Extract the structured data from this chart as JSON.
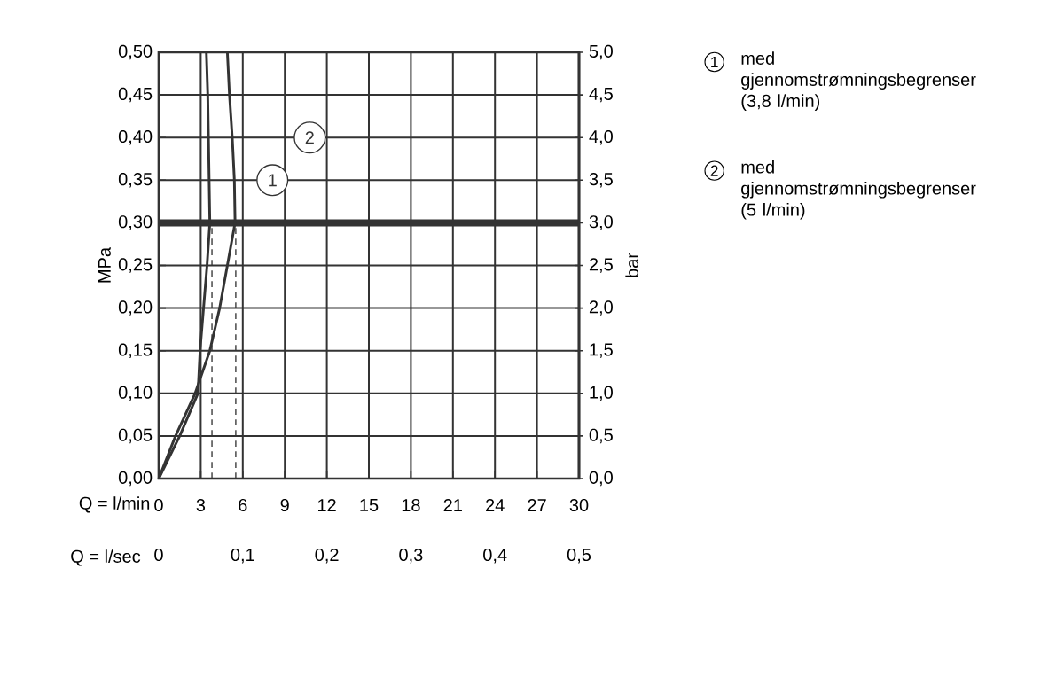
{
  "chart_data": {
    "type": "line",
    "xlabel": "Q = l/min",
    "ylabel": "MPa",
    "y2label": "bar",
    "x2label": "Q = l/sec",
    "xlim": [
      0,
      30
    ],
    "xticks": [
      0,
      3,
      6,
      9,
      12,
      15,
      18,
      21,
      24,
      27,
      30
    ],
    "ylim": [
      0,
      0.5
    ],
    "yticks": [
      {
        "value": 0,
        "label": "0,00"
      },
      {
        "value": 0.05,
        "label": "0,05"
      },
      {
        "value": 0.1,
        "label": "0,10"
      },
      {
        "value": 0.15,
        "label": "0,15"
      },
      {
        "value": 0.2,
        "label": "0,20"
      },
      {
        "value": 0.25,
        "label": "0,25"
      },
      {
        "value": 0.3,
        "label": "0,30"
      },
      {
        "value": 0.35,
        "label": "0,35"
      },
      {
        "value": 0.4,
        "label": "0,40"
      },
      {
        "value": 0.45,
        "label": "0,45"
      },
      {
        "value": 0.5,
        "label": "0,50"
      }
    ],
    "y2lim": [
      0,
      5
    ],
    "y2ticks": [
      {
        "value": 0,
        "label": "0,0"
      },
      {
        "value": 0.5,
        "label": "0,5"
      },
      {
        "value": 1,
        "label": "1,0"
      },
      {
        "value": 1.5,
        "label": "1,5"
      },
      {
        "value": 2,
        "label": "2,0"
      },
      {
        "value": 2.5,
        "label": "2,5"
      },
      {
        "value": 3,
        "label": "3,0"
      },
      {
        "value": 3.5,
        "label": "3,5"
      },
      {
        "value": 4,
        "label": "4,0"
      },
      {
        "value": 4.5,
        "label": "4,5"
      },
      {
        "value": 5,
        "label": "5,0"
      }
    ],
    "x2lim": [
      0,
      0.5
    ],
    "x2ticks": [
      0,
      {
        "value": 0.1,
        "label": "0,1"
      },
      {
        "value": 0.2,
        "label": "0,2"
      },
      {
        "value": 0.3,
        "label": "0,3"
      },
      {
        "value": 0.4,
        "label": "0,4"
      },
      {
        "value": 0.5,
        "label": "0,5"
      }
    ],
    "grid": true,
    "legend": "right",
    "line_style": "solid",
    "marker": "none",
    "series": [
      {
        "name": "med gjennomstrømningsbegrenser (3,8 l/min)",
        "color": "#333333",
        "x": [
          0,
          1.5,
          2.8,
          2.95,
          3.2,
          3.45,
          3.65,
          3.6,
          3.55,
          3.5,
          3.4
        ],
        "values": [
          0,
          0.05,
          0.1,
          0.15,
          0.2,
          0.25,
          0.3,
          0.35,
          0.4,
          0.45,
          0.5
        ]
      },
      {
        "name": "med gjennomstrømningsbegrenser (5 l/min)",
        "color": "#333333",
        "x": [
          0,
          1.2,
          2.6,
          3.65,
          4.35,
          4.9,
          5.45,
          5.4,
          5.25,
          5.05,
          4.9
        ],
        "values": [
          0,
          0.05,
          0.1,
          0.15,
          0.2,
          0.25,
          0.3,
          0.35,
          0.4,
          0.45,
          0.5
        ]
      },
      {
        "color": "#333333",
        "line_style": "dashed",
        "x": [
          3.8,
          3.8
        ],
        "values": [
          0,
          0.3
        ]
      },
      {
        "color": "#333333",
        "line_style": "dashed",
        "x": [
          5.5,
          5.5
        ],
        "values": [
          0,
          0.3
        ]
      }
    ],
    "ref_lines": [
      {
        "axis": "y",
        "value": 0.3,
        "color": "#333333"
      }
    ],
    "annotations": [
      "1",
      "2"
    ]
  }
}
